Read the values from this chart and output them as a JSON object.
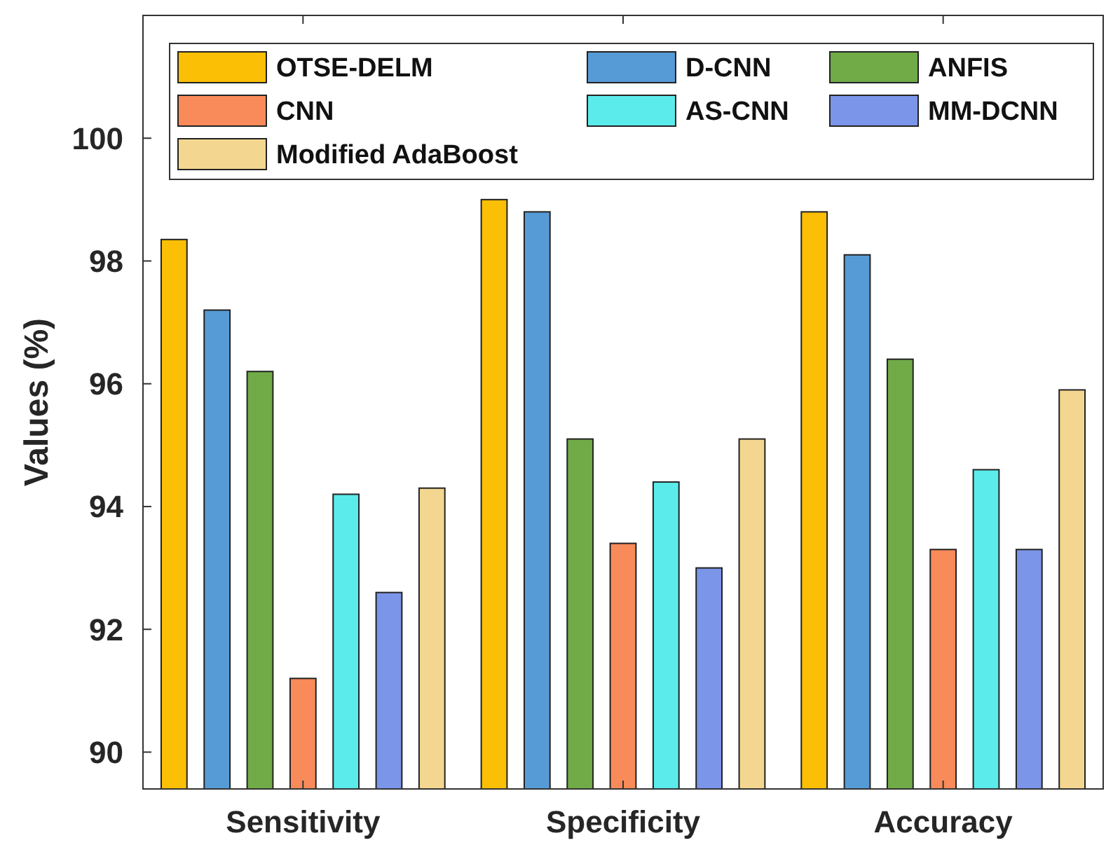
{
  "chart_data": {
    "type": "bar",
    "ylabel": "Values (%)",
    "categories": [
      "Sensitivity",
      "Specificity",
      "Accuracy"
    ],
    "series": [
      {
        "name": "OTSE-DELM",
        "color": "#fbbf05",
        "values": [
          98.35,
          99.0,
          98.8
        ]
      },
      {
        "name": "D-CNN",
        "color": "#579bd6",
        "values": [
          97.2,
          98.8,
          98.1
        ]
      },
      {
        "name": "ANFIS",
        "color": "#70ab48",
        "values": [
          96.2,
          95.1,
          96.4
        ]
      },
      {
        "name": "CNN",
        "color": "#f98b5a",
        "values": [
          91.2,
          93.4,
          93.3
        ]
      },
      {
        "name": "AS-CNN",
        "color": "#5bebea",
        "values": [
          94.2,
          94.4,
          94.6
        ]
      },
      {
        "name": "MM-DCNN",
        "color": "#7b95e8",
        "values": [
          92.6,
          93.0,
          93.3
        ]
      },
      {
        "name": "Modified AdaBoost",
        "color": "#f3d690",
        "values": [
          94.3,
          95.1,
          95.9
        ]
      }
    ],
    "ylim": [
      89.4,
      102
    ],
    "yticks": [
      90,
      92,
      94,
      96,
      98,
      100
    ],
    "grid": false,
    "legend": "top"
  }
}
